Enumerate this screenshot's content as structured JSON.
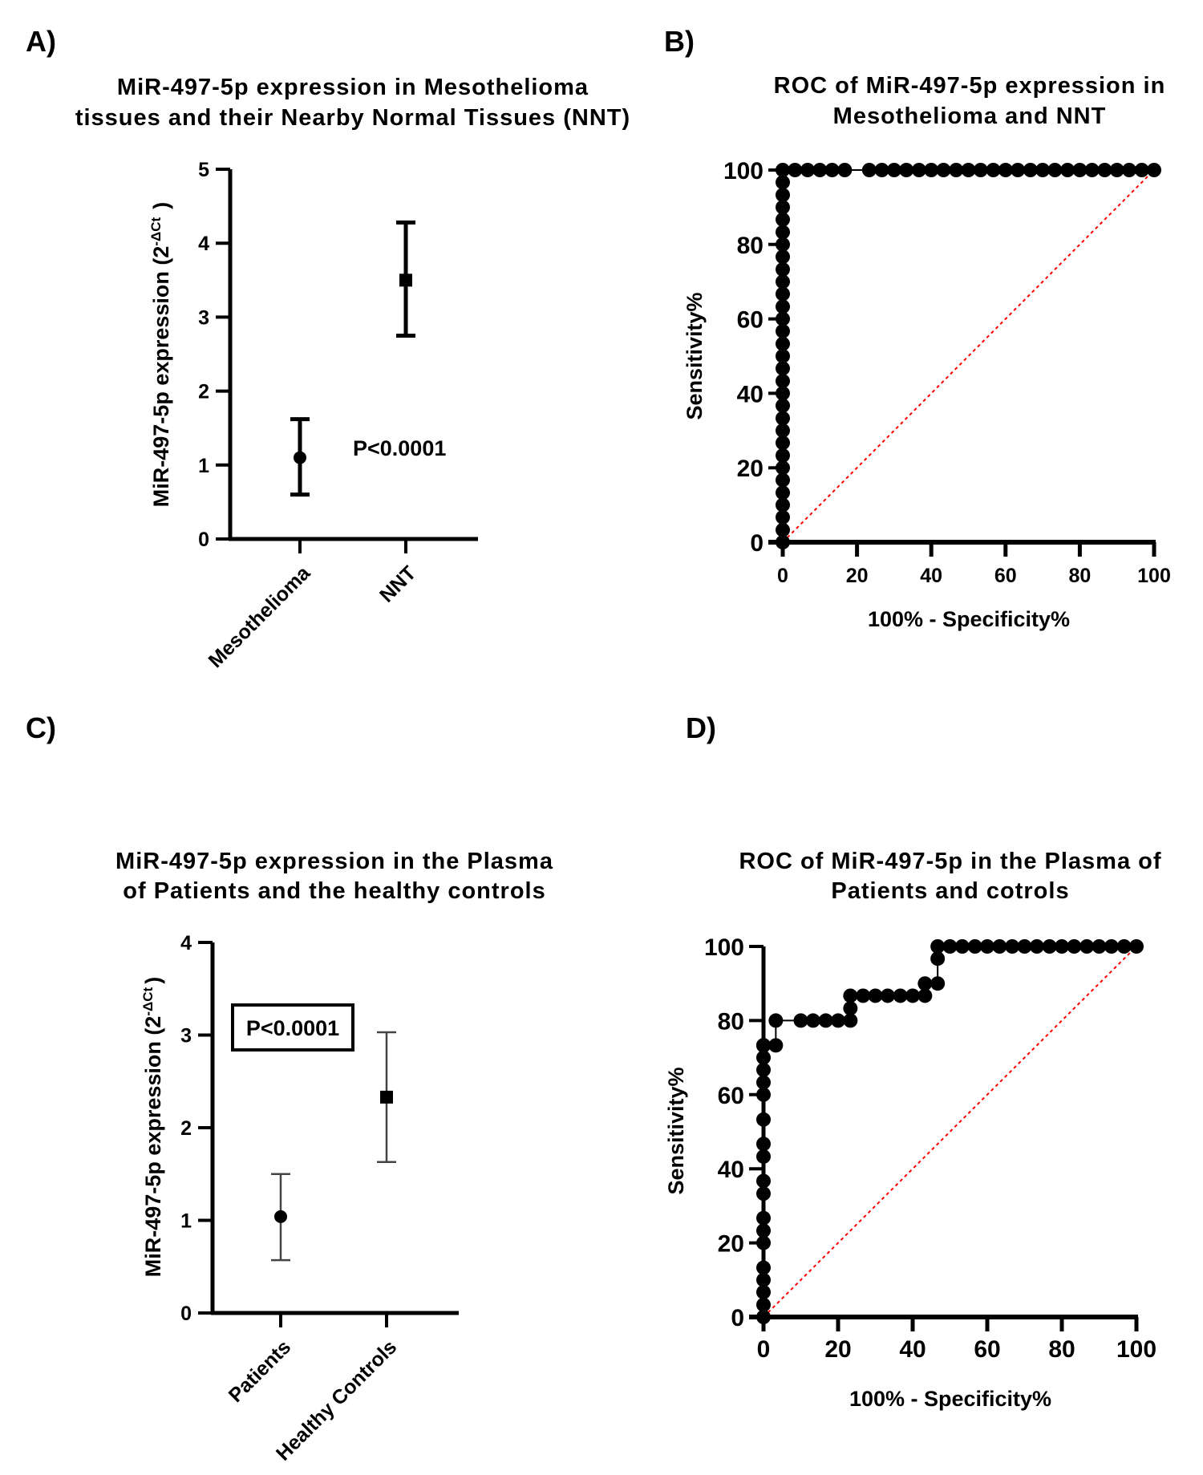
{
  "chart_data": [
    {
      "panel": "A)",
      "type": "scatter",
      "title_lines": [
        "MiR-497-5p expression in Mesothelioma",
        "tissues and their Nearby Normal Tissues (NNT)"
      ],
      "ylabel": "MiR-497-5p expression (2",
      "ylabel_sup": "-ΔCt",
      "ylabel_end": ")",
      "categories": [
        "Mesothelioma",
        "NNT"
      ],
      "means": [
        1.1,
        3.5
      ],
      "err_low": [
        0.6,
        2.75
      ],
      "err_high": [
        1.62,
        4.28
      ],
      "markers": [
        "circle",
        "square"
      ],
      "ylim": [
        0,
        5
      ],
      "yticks": [
        "0",
        "1",
        "2",
        "3",
        "4",
        "5"
      ],
      "annotation": "P<0.0001"
    },
    {
      "panel": "B)",
      "type": "line",
      "title_lines": [
        "ROC of MiR-497-5p expression in",
        "Mesothelioma and NNT"
      ],
      "xlabel": "100% - Specificity%",
      "ylabel": "Sensitivity%",
      "xlim": [
        0,
        100
      ],
      "ylim": [
        0,
        100
      ],
      "xticks": [
        "0",
        "20",
        "40",
        "60",
        "80",
        "100"
      ],
      "yticks": [
        "0",
        "20",
        "40",
        "60",
        "80",
        "100"
      ],
      "reference_line_color": "#ff0000",
      "roc_x": [
        0,
        0,
        0,
        0,
        0,
        0,
        0,
        0,
        0,
        0,
        0,
        0,
        0,
        0,
        0,
        0,
        0,
        0,
        0,
        0,
        0,
        0,
        0,
        0,
        0,
        0,
        0,
        0,
        0,
        0,
        0,
        3.3,
        6.7,
        10,
        13.3,
        16.7,
        23.3,
        26.7,
        30,
        33.3,
        36.7,
        40,
        43.3,
        46.7,
        50,
        53.3,
        56.7,
        60,
        63.3,
        66.7,
        70,
        73.3,
        76.7,
        80,
        83.3,
        86.7,
        90,
        93.3,
        96.7,
        100
      ],
      "roc_y": [
        0,
        3.3,
        6.7,
        10,
        13.3,
        16.7,
        20,
        23.3,
        26.7,
        30,
        33.3,
        36.7,
        40,
        43.3,
        46.7,
        50,
        53.3,
        56.7,
        60,
        63.3,
        66.7,
        70,
        73.3,
        76.7,
        80,
        83.3,
        86.7,
        90,
        93.3,
        96.7,
        100,
        100,
        100,
        100,
        100,
        100,
        100,
        100,
        100,
        100,
        100,
        100,
        100,
        100,
        100,
        100,
        100,
        100,
        100,
        100,
        100,
        100,
        100,
        100,
        100,
        100,
        100,
        100,
        100,
        100
      ]
    },
    {
      "panel": "C)",
      "type": "scatter",
      "title_lines": [
        "MiR-497-5p expression in the Plasma",
        "of Patients and the healthy controls"
      ],
      "ylabel": "MiR-497-5p expression (2",
      "ylabel_sup": "-ΔCt",
      "ylabel_end": ")",
      "categories": [
        "Patients",
        "Healthy Controls"
      ],
      "means": [
        1.04,
        2.33
      ],
      "err_low": [
        0.57,
        1.63
      ],
      "err_high": [
        1.5,
        3.03
      ],
      "markers": [
        "circle",
        "square"
      ],
      "ylim": [
        0,
        4
      ],
      "yticks": [
        "0",
        "1",
        "2",
        "3",
        "4"
      ],
      "annotation": "P<0.0001"
    },
    {
      "panel": "D)",
      "type": "line",
      "title_lines": [
        "ROC of MiR-497-5p in the Plasma of",
        "Patients and cotrols"
      ],
      "xlabel": "100% - Specificity%",
      "ylabel": "Sensitivity%",
      "xlim": [
        0,
        100
      ],
      "ylim": [
        0,
        100
      ],
      "xticks": [
        "0",
        "20",
        "40",
        "60",
        "80",
        "100"
      ],
      "yticks": [
        "0",
        "20",
        "40",
        "60",
        "80",
        "100"
      ],
      "reference_line_color": "#ff0000",
      "roc_x": [
        0,
        0,
        0,
        0,
        0,
        0,
        0,
        0,
        0,
        0,
        0,
        0,
        0,
        0,
        0,
        0,
        0,
        0,
        0,
        0,
        0,
        0,
        0,
        3.3,
        3.3,
        10,
        13.3,
        16.7,
        20,
        23.3,
        23.3,
        23.3,
        26.7,
        30,
        33.3,
        36.7,
        40,
        43.3,
        43.3,
        46.7,
        46.7,
        46.7,
        50,
        53.3,
        56.7,
        60,
        63.3,
        66.7,
        70,
        73.3,
        76.7,
        80,
        83.3,
        86.7,
        90,
        93.3,
        96.7,
        100
      ],
      "roc_y": [
        0,
        3.3,
        6.7,
        10,
        13.3,
        20,
        23.3,
        26.7,
        33.3,
        36.7,
        43.3,
        46.7,
        53.3,
        60,
        63.3,
        66.7,
        70,
        73.3,
        73.3,
        73.3,
        73.3,
        73.3,
        73.3,
        73.3,
        80,
        80,
        80,
        80,
        80,
        80,
        83.3,
        86.7,
        86.7,
        86.7,
        86.7,
        86.7,
        86.7,
        86.7,
        90,
        90,
        96.7,
        100,
        100,
        100,
        100,
        100,
        100,
        100,
        100,
        100,
        100,
        100,
        100,
        100,
        100,
        100,
        100,
        100
      ]
    }
  ]
}
